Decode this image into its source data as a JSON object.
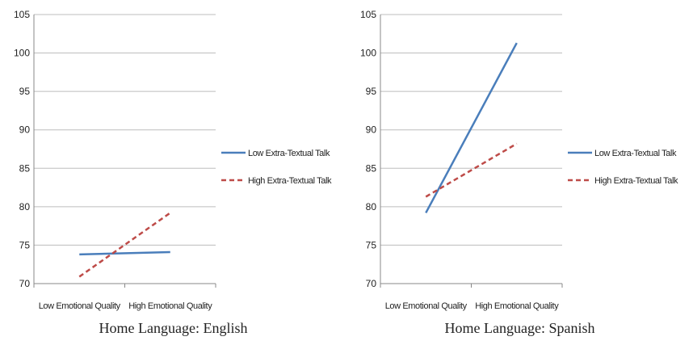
{
  "chart_data": [
    {
      "type": "line",
      "title": "Home Language: English",
      "categories": [
        "Low Emotional Quality",
        "High Emotional Quality"
      ],
      "yticks": [
        70,
        75,
        80,
        85,
        90,
        95,
        100,
        105
      ],
      "ylim": [
        70,
        105
      ],
      "grid": true,
      "legend_position": "right",
      "series": [
        {
          "name": "Low Extra-Textual Talk",
          "values": [
            73.8,
            74.1
          ],
          "color": "#4a7ebb",
          "style": "solid"
        },
        {
          "name": "High Extra-Textual Talk",
          "values": [
            70.9,
            79.2
          ],
          "color": "#be4b48",
          "style": "dashed"
        }
      ]
    },
    {
      "type": "line",
      "title": "Home Language: Spanish",
      "categories": [
        "Low Emotional Quality",
        "High Emotional Quality"
      ],
      "yticks": [
        70,
        75,
        80,
        85,
        90,
        95,
        100,
        105
      ],
      "ylim": [
        70,
        105
      ],
      "grid": true,
      "legend_position": "right",
      "series": [
        {
          "name": "Low Extra-Textual Talk",
          "values": [
            79.2,
            101.3
          ],
          "color": "#4a7ebb",
          "style": "solid"
        },
        {
          "name": "High Extra-Textual Talk",
          "values": [
            81.3,
            88.2
          ],
          "color": "#be4b48",
          "style": "dashed"
        }
      ]
    }
  ]
}
